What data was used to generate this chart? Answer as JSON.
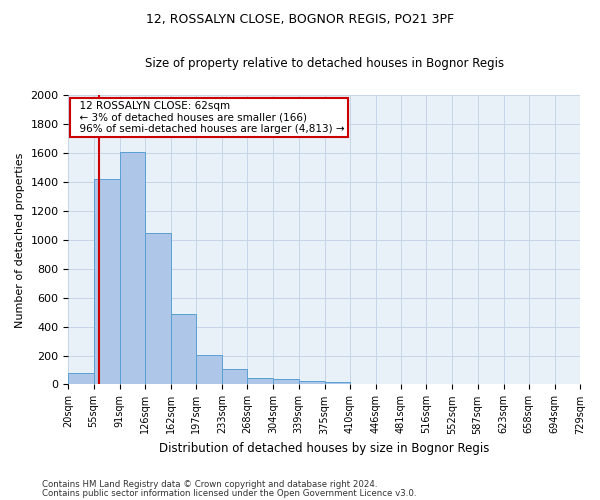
{
  "title": "12, ROSSALYN CLOSE, BOGNOR REGIS, PO21 3PF",
  "subtitle": "Size of property relative to detached houses in Bognor Regis",
  "xlabel": "Distribution of detached houses by size in Bognor Regis",
  "ylabel": "Number of detached properties",
  "footer_line1": "Contains HM Land Registry data © Crown copyright and database right 2024.",
  "footer_line2": "Contains public sector information licensed under the Open Government Licence v3.0.",
  "annotation_title": "12 ROSSALYN CLOSE: 62sqm",
  "annotation_line1": "← 3% of detached houses are smaller (166)",
  "annotation_line2": "96% of semi-detached houses are larger (4,813) →",
  "property_size": 62,
  "bar_edges": [
    20,
    55,
    91,
    126,
    162,
    197,
    233,
    268,
    304,
    339,
    375,
    410,
    446,
    481,
    516,
    552,
    587,
    623,
    658,
    694,
    729
  ],
  "bar_heights": [
    80,
    1420,
    1610,
    1045,
    490,
    205,
    105,
    48,
    35,
    22,
    18,
    0,
    0,
    0,
    0,
    0,
    0,
    0,
    0,
    0
  ],
  "bar_color": "#aec6e8",
  "bar_edge_color": "#5a9fd4",
  "vline_color": "#cc0000",
  "annotation_box_color": "#cc0000",
  "background_color": "#ffffff",
  "plot_bg_color": "#e8f0f8",
  "grid_color": "#c8d4e8",
  "ylim": [
    0,
    2000
  ],
  "yticks": [
    0,
    200,
    400,
    600,
    800,
    1000,
    1200,
    1400,
    1600,
    1800,
    2000
  ]
}
